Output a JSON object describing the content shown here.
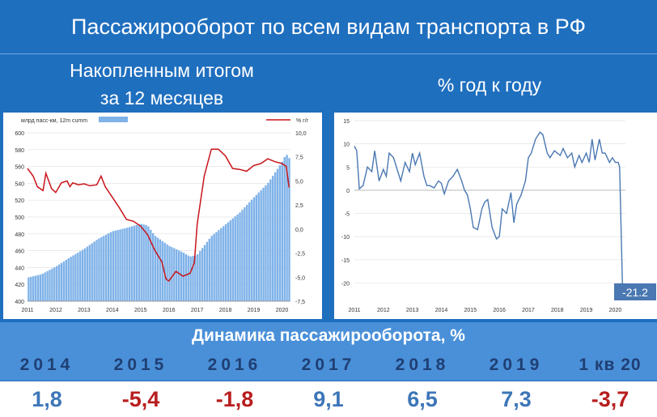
{
  "title": "Пассажирооборот по всем видам транспорта в РФ",
  "left_subtitle_line1": "Накопленным итогом",
  "left_subtitle_line2": "за 12 месяцев",
  "right_subtitle": "% год к году",
  "dynamics_title": "Динамика пассажирооборота, %",
  "dynamics": {
    "years": [
      "2014",
      "2015",
      "2016",
      "2017",
      "2018",
      "2019",
      "1 кв 20"
    ],
    "values": [
      "1,8",
      "-5,4",
      "-1,8",
      "9,1",
      "6,5",
      "7,3",
      "-3,7"
    ],
    "signs": [
      "pos",
      "neg",
      "neg",
      "pos",
      "pos",
      "pos",
      "neg"
    ]
  },
  "colors": {
    "background": "#1f6fbf",
    "bars": "#7fb2e8",
    "yoy_line": "#c8151b",
    "right_line": "#4a78b2",
    "positive_value": "#3d76b8",
    "negative_value": "#b81e1e"
  },
  "chart_data": [
    {
      "type": "bar",
      "legend_bar": "млрд пасс-км, 12m cumm",
      "legend_line": "% г/г",
      "y_left_ticks": [
        "400",
        "420",
        "440",
        "460",
        "480",
        "500",
        "520",
        "540",
        "560",
        "580",
        "600"
      ],
      "y_right_ticks": [
        "-7,5",
        "-5,0",
        "-2,5",
        "0,0",
        "2,5",
        "5,0",
        "7,5",
        "10,0"
      ],
      "x_ticks": [
        "2011",
        "2012",
        "2013",
        "2014",
        "2015",
        "2016",
        "2017",
        "2018",
        "2019",
        "2020"
      ],
      "ylim_left": [
        400,
        600
      ],
      "ylim_right": [
        -7.5,
        10
      ],
      "xlim": [
        2011,
        2020.3
      ],
      "bar_series": {
        "name": "млрд пасс-км, 12m cumm",
        "points": [
          [
            2011,
            428
          ],
          [
            2011.5,
            432
          ],
          [
            2012,
            441
          ],
          [
            2012.5,
            452
          ],
          [
            2013,
            462
          ],
          [
            2013.5,
            474
          ],
          [
            2014,
            483
          ],
          [
            2014.5,
            487
          ],
          [
            2015,
            492
          ],
          [
            2015.25,
            490
          ],
          [
            2015.5,
            478
          ],
          [
            2015.75,
            472
          ],
          [
            2016,
            466
          ],
          [
            2016.5,
            458
          ],
          [
            2016.75,
            453
          ],
          [
            2017,
            455
          ],
          [
            2017.5,
            477
          ],
          [
            2018,
            491
          ],
          [
            2018.5,
            505
          ],
          [
            2019,
            523
          ],
          [
            2019.5,
            540
          ],
          [
            2020,
            565
          ],
          [
            2020.15,
            575
          ],
          [
            2020.25,
            570
          ]
        ]
      },
      "line_series": {
        "name": "% г/г",
        "points": [
          [
            2011,
            6.3
          ],
          [
            2011.2,
            5.5
          ],
          [
            2011.35,
            4.4
          ],
          [
            2011.55,
            4.0
          ],
          [
            2011.65,
            5.8
          ],
          [
            2011.85,
            4.2
          ],
          [
            2012,
            3.8
          ],
          [
            2012.2,
            4.8
          ],
          [
            2012.4,
            5.0
          ],
          [
            2012.5,
            4.4
          ],
          [
            2012.6,
            4.8
          ],
          [
            2012.8,
            4.6
          ],
          [
            2013,
            4.7
          ],
          [
            2013.2,
            4.5
          ],
          [
            2013.45,
            4.6
          ],
          [
            2013.6,
            5.5
          ],
          [
            2013.75,
            4.4
          ],
          [
            2014,
            3.3
          ],
          [
            2014.25,
            2.2
          ],
          [
            2014.5,
            1.0
          ],
          [
            2014.75,
            0.8
          ],
          [
            2015,
            0.3
          ],
          [
            2015.25,
            -0.6
          ],
          [
            2015.5,
            -2.2
          ],
          [
            2015.75,
            -3.4
          ],
          [
            2015.9,
            -5.2
          ],
          [
            2016,
            -5.4
          ],
          [
            2016.25,
            -4.4
          ],
          [
            2016.5,
            -4.9
          ],
          [
            2016.75,
            -4.6
          ],
          [
            2016.9,
            -3.5
          ],
          [
            2017,
            0.5
          ],
          [
            2017.25,
            5.5
          ],
          [
            2017.5,
            8.3
          ],
          [
            2017.75,
            8.3
          ],
          [
            2018,
            7.6
          ],
          [
            2018.25,
            6.3
          ],
          [
            2018.5,
            6.2
          ],
          [
            2018.75,
            6.0
          ],
          [
            2019,
            6.6
          ],
          [
            2019.25,
            6.8
          ],
          [
            2019.5,
            7.3
          ],
          [
            2019.75,
            7.0
          ],
          [
            2020,
            6.8
          ],
          [
            2020.15,
            6.5
          ],
          [
            2020.25,
            4.3
          ]
        ]
      }
    },
    {
      "type": "line",
      "y_ticks": [
        "15",
        "10",
        "5",
        "0",
        "-5",
        "-10",
        "-15",
        "-20"
      ],
      "x_ticks": [
        "2011",
        "2012",
        "2013",
        "2014",
        "2015",
        "2016",
        "2017",
        "2018",
        "2019",
        "2020"
      ],
      "ylim": [
        -22,
        15
      ],
      "xlim": [
        2011,
        2020.35
      ],
      "annotation": "-21.2",
      "series": [
        {
          "points": [
            [
              2011,
              9.5
            ],
            [
              2011.08,
              8.5
            ],
            [
              2011.17,
              0.3
            ],
            [
              2011.3,
              1
            ],
            [
              2011.45,
              5
            ],
            [
              2011.6,
              4
            ],
            [
              2011.7,
              8.5
            ],
            [
              2011.85,
              2
            ],
            [
              2012,
              4.5
            ],
            [
              2012.1,
              3
            ],
            [
              2012.2,
              8
            ],
            [
              2012.35,
              7
            ],
            [
              2012.5,
              4
            ],
            [
              2012.6,
              2
            ],
            [
              2012.75,
              6
            ],
            [
              2012.9,
              4
            ],
            [
              2013,
              8
            ],
            [
              2013.1,
              5.5
            ],
            [
              2013.25,
              8
            ],
            [
              2013.4,
              3
            ],
            [
              2013.5,
              1
            ],
            [
              2013.6,
              1
            ],
            [
              2013.75,
              0.5
            ],
            [
              2013.9,
              2
            ],
            [
              2014,
              1.5
            ],
            [
              2014.1,
              -0.8
            ],
            [
              2014.25,
              2
            ],
            [
              2014.4,
              3
            ],
            [
              2014.55,
              4.5
            ],
            [
              2014.7,
              2
            ],
            [
              2014.8,
              0
            ],
            [
              2014.9,
              -1
            ],
            [
              2015,
              -4
            ],
            [
              2015.1,
              -8
            ],
            [
              2015.25,
              -8.5
            ],
            [
              2015.4,
              -4
            ],
            [
              2015.5,
              -2.5
            ],
            [
              2015.6,
              -2
            ],
            [
              2015.75,
              -8
            ],
            [
              2015.9,
              -10.5
            ],
            [
              2016,
              -10
            ],
            [
              2016.1,
              -4
            ],
            [
              2016.25,
              -5
            ],
            [
              2016.4,
              -0.5
            ],
            [
              2016.5,
              -7
            ],
            [
              2016.6,
              -3
            ],
            [
              2016.75,
              -1
            ],
            [
              2016.9,
              2
            ],
            [
              2017,
              7
            ],
            [
              2017.1,
              8
            ],
            [
              2017.25,
              11
            ],
            [
              2017.4,
              12.5
            ],
            [
              2017.5,
              12
            ],
            [
              2017.65,
              8
            ],
            [
              2017.75,
              7
            ],
            [
              2017.9,
              8.5
            ],
            [
              2018,
              8
            ],
            [
              2018.1,
              7.5
            ],
            [
              2018.2,
              9
            ],
            [
              2018.35,
              7
            ],
            [
              2018.5,
              8
            ],
            [
              2018.6,
              5
            ],
            [
              2018.75,
              7.5
            ],
            [
              2018.85,
              6
            ],
            [
              2019,
              8
            ],
            [
              2019.1,
              6
            ],
            [
              2019.2,
              11
            ],
            [
              2019.3,
              6.5
            ],
            [
              2019.45,
              11
            ],
            [
              2019.55,
              8
            ],
            [
              2019.65,
              8
            ],
            [
              2019.8,
              6
            ],
            [
              2019.9,
              7
            ],
            [
              2020,
              6
            ],
            [
              2020.1,
              6
            ],
            [
              2020.15,
              5
            ],
            [
              2020.25,
              -21.2
            ]
          ]
        }
      ]
    }
  ]
}
